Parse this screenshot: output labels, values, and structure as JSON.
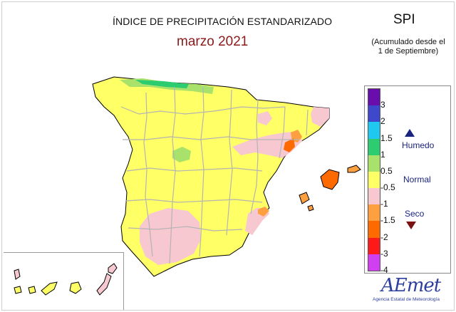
{
  "header": {
    "title": "ÍNDICE DE PRECIPITACIÓN ESTANDARIZADO",
    "subtitle": "marzo 2021",
    "index_label": "SPI",
    "accumulation_note_line1": "(Acumulado desde el",
    "accumulation_note_line2": "1 de Septiembre)"
  },
  "legend": {
    "ticks": [
      "3",
      "2",
      "1.5",
      "1",
      "0.5",
      "-0.5",
      "-1",
      "-1.5",
      "-2",
      "-3",
      "-4"
    ],
    "colors": [
      "#6a0dad",
      "#3f48cc",
      "#1ec8f0",
      "#2ecc71",
      "#a8e26b",
      "#ffff66",
      "#f8c8d0",
      "#ffa040",
      "#ff6a00",
      "#ff1a1a",
      "#d040f0"
    ],
    "class_labels": {
      "humid": "Humedo",
      "normal": "Normal",
      "dry": "Seco"
    }
  },
  "map_colors": {
    "normal": "#ffff66",
    "slightly_humid": "#a8e26b",
    "humid": "#2ecc71",
    "slightly_dry": "#f8c8d0",
    "dry": "#ffa040",
    "very_dry": "#ff6a00",
    "borders": "#b4b4b4",
    "coast": "#000000"
  },
  "logo": {
    "text": "AEmet",
    "caption": "Agencia Estatal de Meteorología"
  }
}
